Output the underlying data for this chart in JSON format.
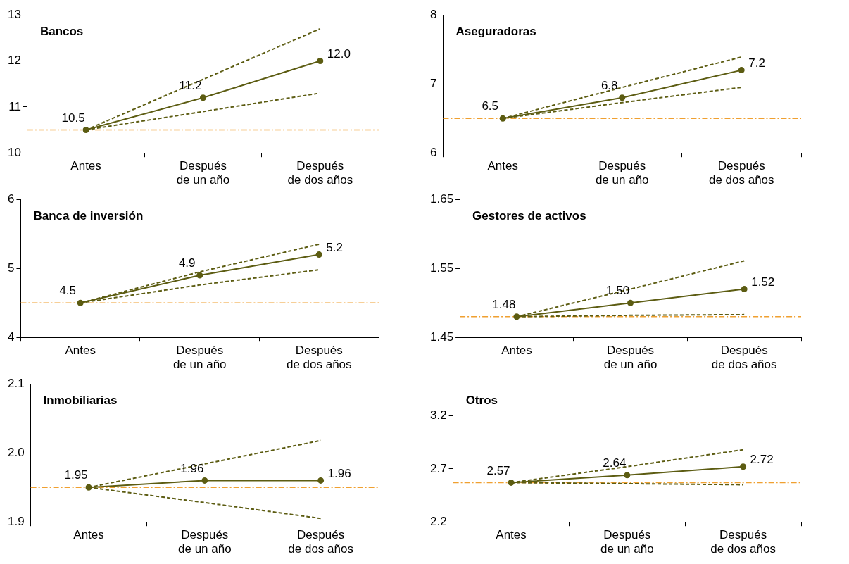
{
  "chart_data": [
    {
      "type": "line",
      "title": "Bancos",
      "categories": [
        "Antes",
        "Después de un año",
        "Después de dos años"
      ],
      "ylim": [
        10,
        13
      ],
      "yticks": [
        10,
        11,
        12,
        13
      ],
      "grid": false,
      "legend": false,
      "series": [
        {
          "color": "#5c5c12",
          "values": [
            10.5,
            11.6,
            12.7
          ],
          "line_style": "dashed",
          "marker": "none"
        },
        {
          "color": "#5c5c12",
          "values": [
            10.5,
            10.9,
            11.3
          ],
          "line_style": "dashed",
          "marker": "none"
        },
        {
          "color": "#5c5c12",
          "values": [
            10.5,
            11.2,
            12.0
          ],
          "value_labels": [
            "10.5",
            "11.2",
            "12.0"
          ],
          "line_style": "solid",
          "marker": "circle"
        }
      ],
      "ref_lines": [
        {
          "axis": "y",
          "value": 10.5,
          "color": "#f0a030",
          "line_style": "dashdot"
        }
      ]
    },
    {
      "type": "line",
      "title": "Aseguradoras",
      "categories": [
        "Antes",
        "Después de un año",
        "Después de dos años"
      ],
      "ylim": [
        6,
        8
      ],
      "yticks": [
        6,
        7,
        8
      ],
      "grid": false,
      "legend": false,
      "series": [
        {
          "color": "#5c5c12",
          "values": [
            6.5,
            6.95,
            7.39
          ],
          "line_style": "dashed",
          "marker": "none"
        },
        {
          "color": "#5c5c12",
          "values": [
            6.5,
            6.73,
            6.95
          ],
          "line_style": "dashed",
          "marker": "none"
        },
        {
          "color": "#5c5c12",
          "values": [
            6.5,
            6.8,
            7.2
          ],
          "value_labels": [
            "6.5",
            "6.8",
            "7.2"
          ],
          "line_style": "solid",
          "marker": "circle"
        }
      ],
      "ref_lines": [
        {
          "axis": "y",
          "value": 6.5,
          "color": "#f0a030",
          "line_style": "dashdot"
        }
      ]
    },
    {
      "type": "line",
      "title": "Banca de inversión",
      "categories": [
        "Antes",
        "Después de un año",
        "Después de dos años"
      ],
      "ylim": [
        4,
        6
      ],
      "yticks": [
        4,
        5,
        6
      ],
      "grid": false,
      "legend": false,
      "series": [
        {
          "color": "#5c5c12",
          "values": [
            4.5,
            4.95,
            5.35
          ],
          "line_style": "dashed",
          "marker": "none"
        },
        {
          "color": "#5c5c12",
          "values": [
            4.5,
            4.76,
            4.98
          ],
          "line_style": "dashed",
          "marker": "none"
        },
        {
          "color": "#5c5c12",
          "values": [
            4.5,
            4.9,
            5.2
          ],
          "value_labels": [
            "4.5",
            "4.9",
            "5.2"
          ],
          "line_style": "solid",
          "marker": "circle"
        }
      ],
      "ref_lines": [
        {
          "axis": "y",
          "value": 4.5,
          "color": "#f0a030",
          "line_style": "dashdot"
        }
      ]
    },
    {
      "type": "line",
      "title": "Gestores de activos",
      "categories": [
        "Antes",
        "Después de un año",
        "Después de dos años"
      ],
      "ylim": [
        1.45,
        1.65
      ],
      "yticks": [
        1.45,
        1.55,
        1.65
      ],
      "grid": false,
      "legend": false,
      "series": [
        {
          "color": "#5c5c12",
          "values": [
            1.48,
            1.52,
            1.561
          ],
          "line_style": "dashed",
          "marker": "none"
        },
        {
          "color": "#5c5c12",
          "values": [
            1.48,
            1.482,
            1.483
          ],
          "line_style": "dashed",
          "marker": "none"
        },
        {
          "color": "#5c5c12",
          "values": [
            1.48,
            1.5,
            1.52
          ],
          "value_labels": [
            "1.48",
            "1.50",
            "1.52"
          ],
          "line_style": "solid",
          "marker": "circle"
        }
      ],
      "ref_lines": [
        {
          "axis": "y",
          "value": 1.48,
          "color": "#f0a030",
          "line_style": "dashdot"
        }
      ]
    },
    {
      "type": "line",
      "title": "Inmobiliarias",
      "categories": [
        "Antes",
        "Después de un año",
        "Después de dos años"
      ],
      "ylim": [
        1.9,
        2.1
      ],
      "yticks": [
        1.9,
        {
          "value": 2,
          "label": "2.0"
        },
        2.1
      ],
      "grid": false,
      "legend": false,
      "series": [
        {
          "color": "#5c5c12",
          "values": [
            1.95,
            1.984,
            2.018
          ],
          "line_style": "dashed",
          "marker": "none"
        },
        {
          "color": "#5c5c12",
          "values": [
            1.95,
            1.928,
            1.905
          ],
          "line_style": "dashed",
          "marker": "none"
        },
        {
          "color": "#5c5c12",
          "values": [
            1.95,
            1.96,
            1.96
          ],
          "value_labels": [
            "1.95",
            "1.96",
            "1.96"
          ],
          "line_style": "solid",
          "marker": "circle"
        }
      ],
      "ref_lines": [
        {
          "axis": "y",
          "value": 1.95,
          "color": "#f0a030",
          "line_style": "dashdot"
        }
      ]
    },
    {
      "type": "line",
      "title": "Otros",
      "categories": [
        "Antes",
        "Después de un año",
        "Después de dos años"
      ],
      "ylim": [
        2.2,
        3.5
      ],
      "yticks": [
        2.2,
        2.7,
        3.2
      ],
      "grid": false,
      "legend": false,
      "series": [
        {
          "color": "#5c5c12",
          "values": [
            2.57,
            2.72,
            2.88
          ],
          "line_style": "dashed",
          "marker": "none"
        },
        {
          "color": "#5c5c12",
          "values": [
            2.57,
            2.56,
            2.55
          ],
          "line_style": "dashed",
          "marker": "none"
        },
        {
          "color": "#5c5c12",
          "values": [
            2.57,
            2.64,
            2.72
          ],
          "value_labels": [
            "2.57",
            "2.64",
            "2.72"
          ],
          "line_style": "solid",
          "marker": "circle"
        }
      ],
      "ref_lines": [
        {
          "axis": "y",
          "value": 2.57,
          "color": "#f0a030",
          "line_style": "dashdot"
        }
      ]
    }
  ]
}
